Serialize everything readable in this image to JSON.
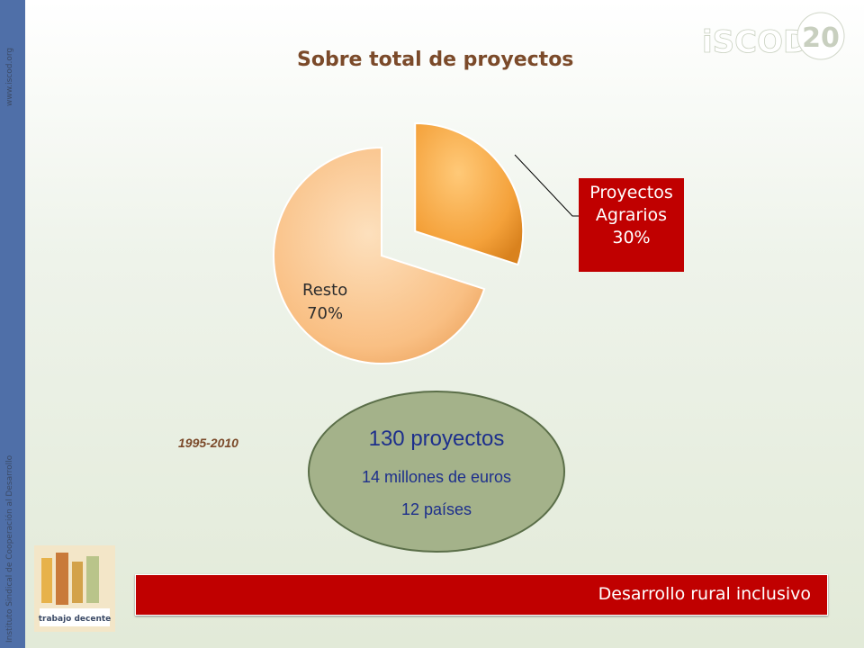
{
  "sidebar": {
    "url": "www.iscod.org",
    "institute": "Instituto Sindical de Cooperación al Desarrollo"
  },
  "logo": {
    "brand": "iSCOD",
    "anniversary": "20"
  },
  "chart_data": {
    "type": "pie",
    "title": "Sobre total de proyectos",
    "slices": [
      {
        "label": "Proyectos Agrarios",
        "value": 30,
        "display": "30%",
        "color": "#f4a13a",
        "exploded": true
      },
      {
        "label": "Resto",
        "value": 70,
        "display": "70%",
        "color": "#f9bf83",
        "exploded": false
      }
    ]
  },
  "summary": {
    "period": "1995-2010",
    "projects": "130 proyectos",
    "funding": "14 millones de euros",
    "countries": "12 países"
  },
  "badge": {
    "text": "dignidad igualdad libertad trabajo decente para todos"
  },
  "banner": {
    "text": "Desarrollo rural inclusivo"
  },
  "colors": {
    "sidebar": "#4f6fa8",
    "accent_red": "#c00000",
    "title_brown": "#7b4a2a",
    "ellipse_fill": "#a4b28a"
  }
}
